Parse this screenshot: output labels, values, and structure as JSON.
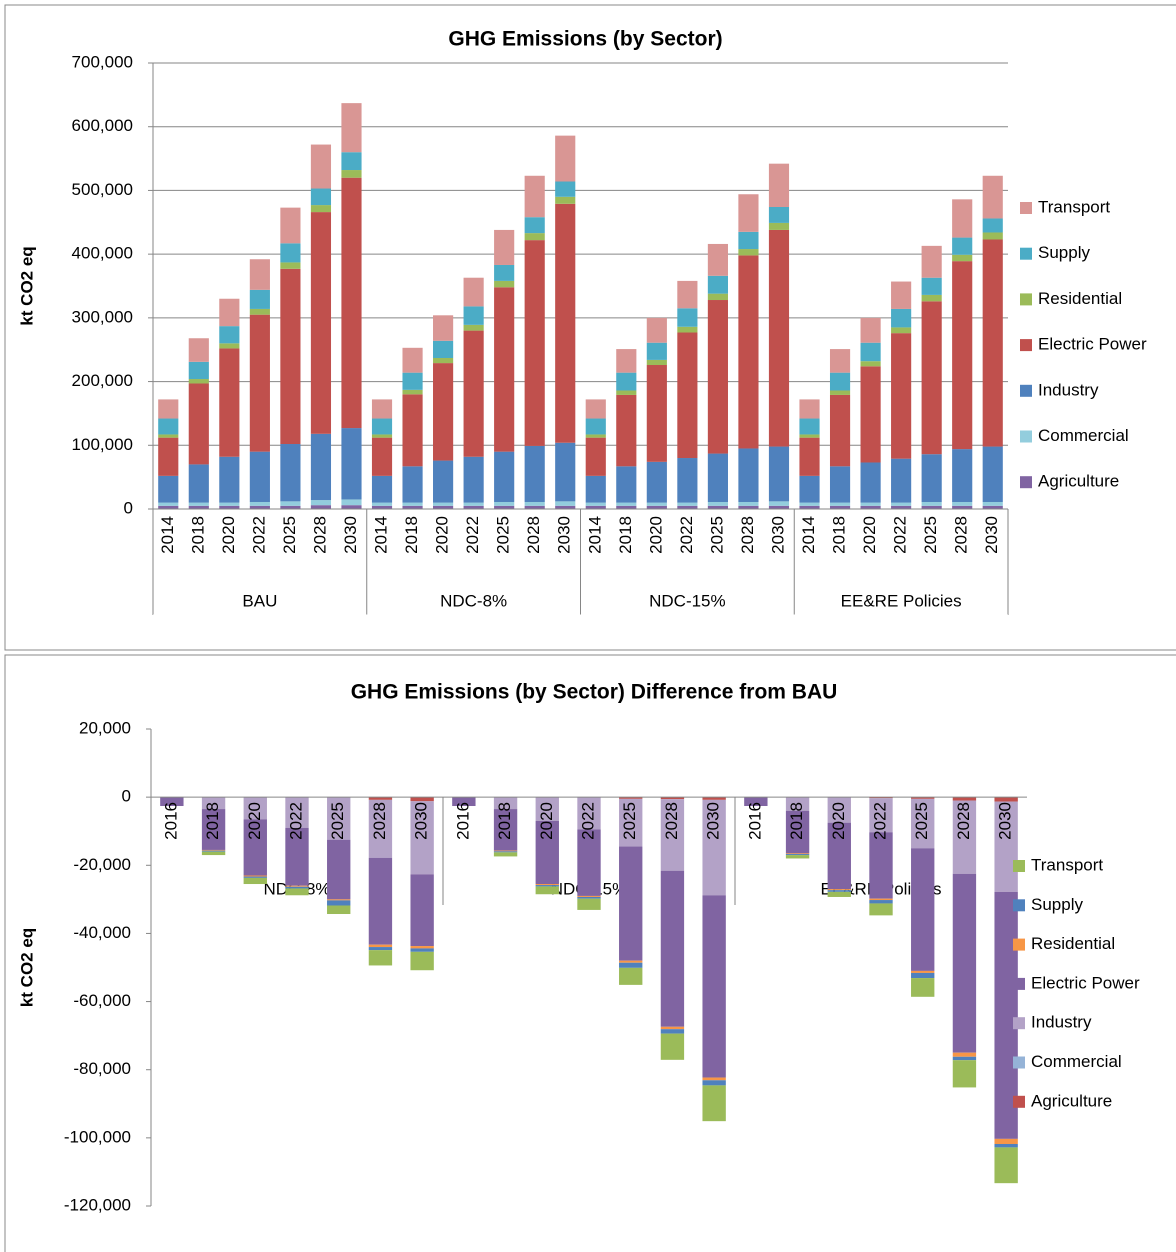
{
  "chart_data": [
    {
      "type": "bar",
      "stacked": true,
      "title": "GHG Emissions (by Sector)",
      "ylabel": "kt CO2 eq",
      "grid": true,
      "legend": "right",
      "groups": [
        "BAU",
        "NDC-8%",
        "NDC-15%",
        "EE&RE Policies"
      ],
      "categories": [
        [
          "2014",
          "2018",
          "2020",
          "2022",
          "2025",
          "2028",
          "2030"
        ],
        [
          "2014",
          "2018",
          "2020",
          "2022",
          "2025",
          "2028",
          "2030"
        ],
        [
          "2014",
          "2018",
          "2020",
          "2022",
          "2025",
          "2028",
          "2030"
        ],
        [
          "2014",
          "2018",
          "2020",
          "2022",
          "2025",
          "2028",
          "2030"
        ]
      ],
      "ylim": [
        0,
        700000
      ],
      "yticks": [
        0,
        {
          "value": 100000,
          "label": "100,000"
        },
        {
          "value": 200000,
          "label": "200,000"
        },
        {
          "value": 300000,
          "label": "300,000"
        },
        {
          "value": 400000,
          "label": "400,000"
        },
        {
          "value": 500000,
          "label": "500,000"
        },
        {
          "value": 600000,
          "label": "600,000"
        },
        {
          "value": 700000,
          "label": "700,000"
        }
      ],
      "series": [
        {
          "name": "Agriculture",
          "color": "#8064a2",
          "values": [
            [
              5000,
              5000,
              5000,
              5000,
              5000,
              6000,
              6000
            ],
            [
              5000,
              5000,
              5000,
              5000,
              5000,
              5000,
              5000
            ],
            [
              5000,
              5000,
              5000,
              5000,
              5000,
              5000,
              5000
            ],
            [
              5000,
              5000,
              5000,
              5000,
              5000,
              5000,
              5000
            ]
          ]
        },
        {
          "name": "Commercial",
          "color": "#93cddd",
          "values": [
            [
              5000,
              5000,
              5000,
              6000,
              7000,
              8000,
              9000
            ],
            [
              5000,
              5000,
              5000,
              5000,
              6000,
              6000,
              7000
            ],
            [
              5000,
              5000,
              5000,
              5000,
              6000,
              6000,
              7000
            ],
            [
              5000,
              5000,
              5000,
              5000,
              6000,
              6000,
              6000
            ]
          ]
        },
        {
          "name": "Industry",
          "color": "#4f81bd",
          "values": [
            [
              42000,
              60000,
              72000,
              79000,
              90000,
              104000,
              112000
            ],
            [
              42000,
              57000,
              66000,
              72000,
              79000,
              88000,
              92000
            ],
            [
              42000,
              57000,
              64000,
              70000,
              76000,
              84000,
              86000
            ],
            [
              42000,
              57000,
              63000,
              69000,
              75000,
              83000,
              87000
            ]
          ]
        },
        {
          "name": "Electric Power",
          "color": "#c0504d",
          "values": [
            [
              60000,
              127000,
              170000,
              215000,
              275000,
              348000,
              393000
            ],
            [
              60000,
              113000,
              153000,
              198000,
              258000,
              323000,
              375000
            ],
            [
              60000,
              112000,
              152000,
              197000,
              241000,
              303000,
              340000
            ],
            [
              60000,
              112000,
              151000,
              197000,
              240000,
              295000,
              325000
            ]
          ]
        },
        {
          "name": "Residential",
          "color": "#9bbb59",
          "values": [
            [
              5000,
              7000,
              8000,
              9000,
              10000,
              11000,
              12000
            ],
            [
              5000,
              7000,
              8000,
              9000,
              10000,
              11000,
              11000
            ],
            [
              5000,
              7000,
              8000,
              9000,
              10000,
              10000,
              11000
            ],
            [
              5000,
              7000,
              8000,
              9000,
              10000,
              10000,
              11000
            ]
          ]
        },
        {
          "name": "Supply",
          "color": "#4bacc6",
          "values": [
            [
              25000,
              27000,
              27000,
              30000,
              30000,
              26000,
              28000
            ],
            [
              25000,
              27000,
              27000,
              29000,
              25000,
              25000,
              24000
            ],
            [
              25000,
              28000,
              27000,
              29000,
              28000,
              27000,
              25000
            ],
            [
              25000,
              28000,
              29000,
              29000,
              27000,
              27000,
              22000
            ]
          ]
        },
        {
          "name": "Transport",
          "color": "#d99694",
          "values": [
            [
              30000,
              37000,
              43000,
              48000,
              56000,
              69000,
              77000
            ],
            [
              30000,
              39000,
              40000,
              45000,
              55000,
              65000,
              72000
            ],
            [
              30000,
              37000,
              39000,
              43000,
              50000,
              59000,
              68000
            ],
            [
              30000,
              37000,
              39000,
              43000,
              50000,
              60000,
              67000
            ]
          ]
        }
      ]
    },
    {
      "type": "bar",
      "stacked": true,
      "title": "GHG Emissions (by Sector) Difference from BAU",
      "ylabel": "kt CO2 eq",
      "grid": false,
      "legend": "right",
      "groups": [
        "NDC-8%",
        "NDC-15%",
        "EE&RE Policies"
      ],
      "categories": [
        [
          "2016",
          "2018",
          "2020",
          "2022",
          "2025",
          "2028",
          "2030"
        ],
        [
          "2016",
          "2018",
          "2020",
          "2022",
          "2025",
          "2028",
          "2030"
        ],
        [
          "2016",
          "2018",
          "2020",
          "2022",
          "2025",
          "2028",
          "2030"
        ]
      ],
      "ylim": [
        -120000,
        20000
      ],
      "yticks": [
        {
          "value": -120000,
          "label": "-120,000"
        },
        {
          "value": -100000,
          "label": "-100,000"
        },
        {
          "value": -80000,
          "label": "-80,000"
        },
        {
          "value": -60000,
          "label": "-60,000"
        },
        {
          "value": -40000,
          "label": "-40,000"
        },
        {
          "value": -20000,
          "label": "-20,000"
        },
        0,
        {
          "value": 20000,
          "label": "20,000"
        }
      ],
      "series": [
        {
          "name": "Agriculture",
          "color": "#c0504d",
          "values": [
            [
              0,
              0,
              0,
              0,
              0,
              -800,
              -1200
            ],
            [
              0,
              0,
              0,
              0,
              -500,
              -600,
              -800
            ],
            [
              0,
              0,
              0,
              -300,
              -500,
              -1000,
              -1300
            ]
          ]
        },
        {
          "name": "Commercial",
          "color": "#95b3d7",
          "values": [
            [
              0,
              0,
              0,
              0,
              0,
              0,
              0
            ],
            [
              0,
              0,
              0,
              0,
              0,
              0,
              0
            ],
            [
              0,
              0,
              0,
              0,
              0,
              0,
              0
            ]
          ]
        },
        {
          "name": "Industry",
          "color": "#b3a2c7",
          "values": [
            [
              0,
              -3500,
              -6500,
              -9000,
              -12500,
              -17000,
              -21500
            ],
            [
              0,
              -3500,
              -7000,
              -9500,
              -14000,
              -21000,
              -28000
            ],
            [
              0,
              -4000,
              -7500,
              -10000,
              -14500,
              -21500,
              -26500
            ]
          ]
        },
        {
          "name": "Electric Power",
          "color": "#8064a2",
          "values": [
            [
              -2600,
              -12000,
              -16500,
              -17000,
              -17500,
              -25500,
              -21000
            ],
            [
              -2600,
              -12200,
              -18500,
              -19500,
              -33500,
              -45800,
              -53500
            ],
            [
              -2600,
              -12500,
              -19500,
              -19500,
              -36000,
              -52500,
              -72500
            ]
          ]
        },
        {
          "name": "Residential",
          "color": "#f79646",
          "values": [
            [
              0,
              -200,
              -300,
              -300,
              -300,
              -700,
              -700
            ],
            [
              0,
              -200,
              -300,
              -300,
              -600,
              -700,
              -800
            ],
            [
              0,
              -200,
              -300,
              -400,
              -600,
              -1200,
              -1500
            ]
          ]
        },
        {
          "name": "Supply",
          "color": "#4f81bd",
          "values": [
            [
              0,
              -300,
              -400,
              -500,
              -1500,
              -900,
              -1000
            ],
            [
              0,
              -300,
              -400,
              -500,
              -1500,
              -1300,
              -1500
            ],
            [
              0,
              -300,
              -500,
              -1000,
              -1500,
              -1000,
              -1000
            ]
          ]
        },
        {
          "name": "Transport",
          "color": "#9bbb59",
          "values": [
            [
              0,
              -1000,
              -1800,
              -2000,
              -2500,
              -4500,
              -5400
            ],
            [
              0,
              -1200,
              -2300,
              -3300,
              -5000,
              -7700,
              -10500
            ],
            [
              0,
              -1000,
              -1500,
              -3500,
              -5500,
              -8000,
              -10500
            ]
          ]
        }
      ]
    }
  ]
}
